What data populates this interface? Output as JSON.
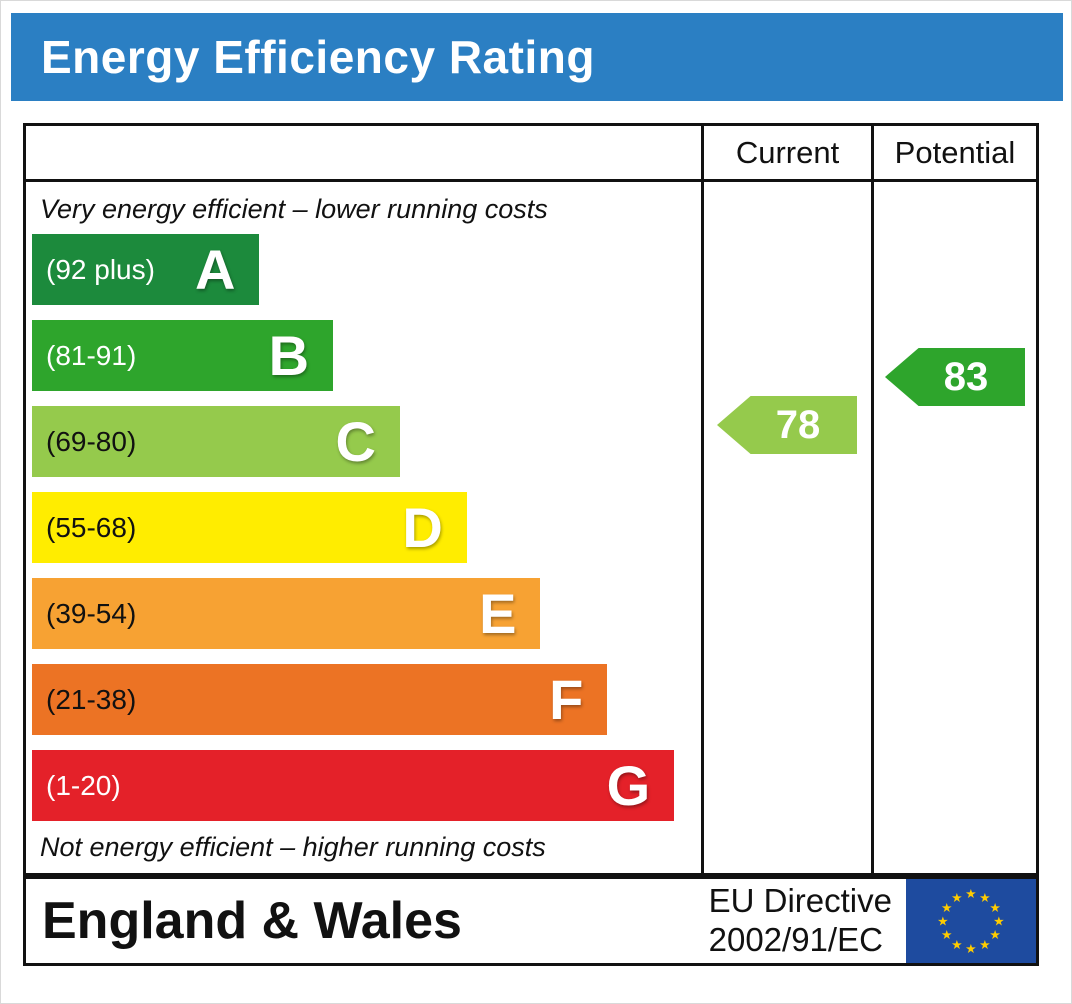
{
  "page": {
    "title": "Energy Efficiency Rating"
  },
  "table": {
    "columns": {
      "current": "Current",
      "potential": "Potential"
    },
    "top_note": "Very energy efficient – lower running costs",
    "bottom_note": "Not energy efficient – higher running costs"
  },
  "chart_data": {
    "type": "bar",
    "title": "Energy Efficiency Rating",
    "categories": [
      "A",
      "B",
      "C",
      "D",
      "E",
      "F",
      "G"
    ],
    "bands": [
      {
        "letter": "A",
        "range": "(92 plus)",
        "color": "#1c8a3c",
        "text_color": "#ffffff",
        "width_pct": 34
      },
      {
        "letter": "B",
        "range": "(81-91)",
        "color": "#2ea52c",
        "text_color": "#ffffff",
        "width_pct": 45
      },
      {
        "letter": "C",
        "range": "(69-80)",
        "color": "#95ca4c",
        "text_color": "#111111",
        "width_pct": 55
      },
      {
        "letter": "D",
        "range": "(55-68)",
        "color": "#ffed00",
        "text_color": "#111111",
        "width_pct": 65
      },
      {
        "letter": "E",
        "range": "(39-54)",
        "color": "#f7a233",
        "text_color": "#111111",
        "width_pct": 76
      },
      {
        "letter": "F",
        "range": "(21-38)",
        "color": "#ec7324",
        "text_color": "#111111",
        "width_pct": 86
      },
      {
        "letter": "G",
        "range": "(1-20)",
        "color": "#e42129",
        "text_color": "#ffffff",
        "width_pct": 96
      }
    ],
    "current": {
      "value": 78,
      "band": "C",
      "color": "#95ca4c"
    },
    "potential": {
      "value": 83,
      "band": "B",
      "color": "#2ea52c"
    }
  },
  "footer": {
    "region": "England & Wales",
    "directive_line1": "EU Directive",
    "directive_line2": "2002/91/EC",
    "flag": {
      "name": "eu-flag",
      "background": "#1e4b9f",
      "star_color": "#ffcc00",
      "star_count": 12
    }
  },
  "colors": {
    "header_bg": "#2b7fc3",
    "header_text": "#ffffff",
    "border": "#111111"
  }
}
